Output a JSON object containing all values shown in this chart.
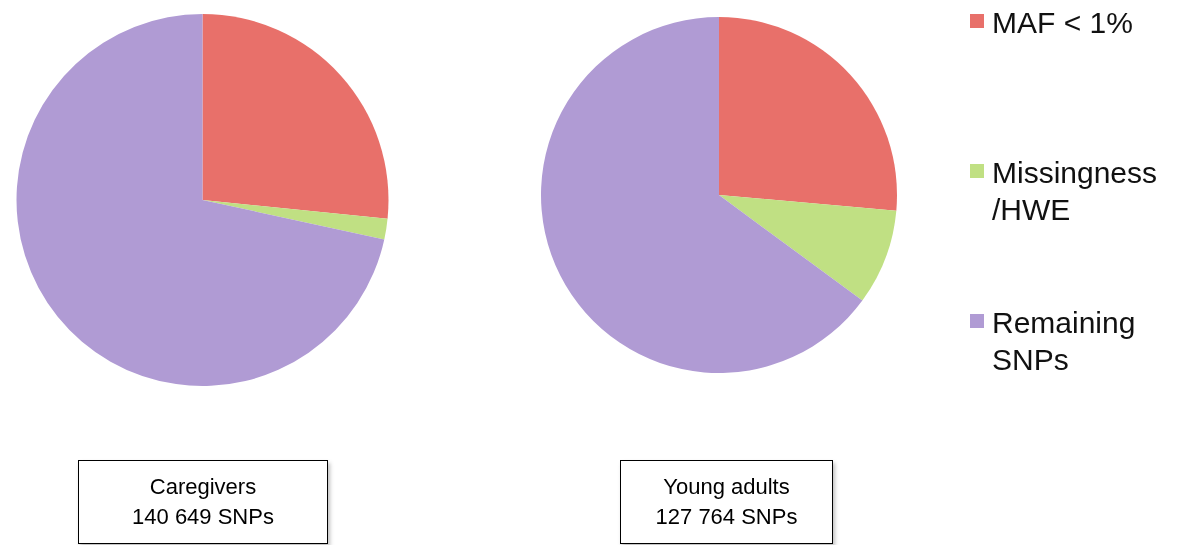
{
  "chart_data": [
    {
      "type": "pie",
      "title": "Caregivers",
      "subtitle": "140 649 SNPs",
      "values": [
        26.6,
        1.8,
        71.6
      ],
      "colors": [
        "#e8706a",
        "#c0e083",
        "#b09bd4"
      ]
    },
    {
      "type": "pie",
      "title": "Young adults",
      "subtitle": "127 764 SNPs",
      "categories": [
        "MAF < 1%",
        "Missingness /HWE",
        "Remaining SNPs"
      ],
      "values": [
        26.4,
        8.7,
        64.9
      ],
      "colors": [
        "#e8706a",
        "#c0e083",
        "#b09bd4"
      ],
      "legend": "right"
    }
  ]
}
